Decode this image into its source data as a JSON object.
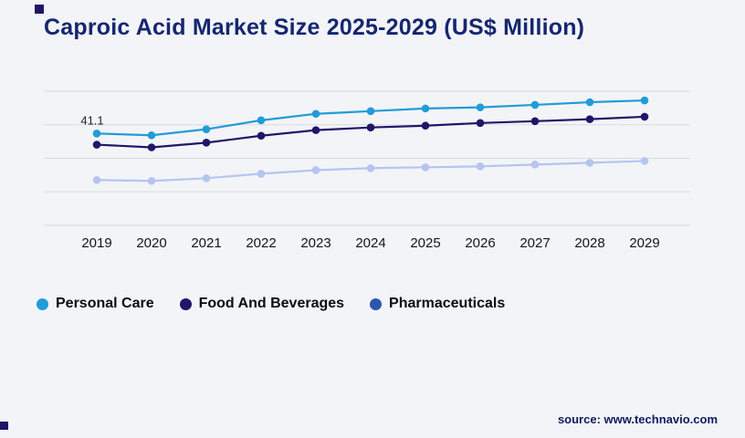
{
  "title": "Caproic Acid Market Size 2025-2029 (US$ Million)",
  "source": "source: www.technavio.com",
  "chart_data": {
    "type": "line",
    "title": "Caproic Acid Market Size 2025-2029 (US$ Million)",
    "x": [
      2019,
      2020,
      2021,
      2022,
      2023,
      2024,
      2025,
      2026,
      2027,
      2028,
      2029
    ],
    "series": [
      {
        "name": "Personal Care",
        "color": "#219cd7",
        "values": [
          41.1,
          40.3,
          43.0,
          47.0,
          49.9,
          51.1,
          52.3,
          52.8,
          53.9,
          55.1,
          55.9
        ]
      },
      {
        "name": "Food And Beverages",
        "color": "#211569",
        "values": [
          36.1,
          34.9,
          37.0,
          40.1,
          42.6,
          43.8,
          44.6,
          45.8,
          46.6,
          47.5,
          48.6
        ]
      },
      {
        "name": "Pharmaceuticals",
        "color": "#b5c5f0",
        "legend_color": "#2b57ab",
        "values": [
          20.3,
          19.9,
          21.1,
          23.1,
          24.7,
          25.6,
          26.0,
          26.4,
          27.2,
          28.0,
          28.8
        ]
      }
    ],
    "ylim": [
      0,
      60
    ],
    "gridlines": [
      0,
      15,
      30,
      45,
      60
    ],
    "grid": true,
    "legend_position": "bottom",
    "annotation": {
      "text": "41.1",
      "series": "Personal Care",
      "x": 2019
    }
  }
}
